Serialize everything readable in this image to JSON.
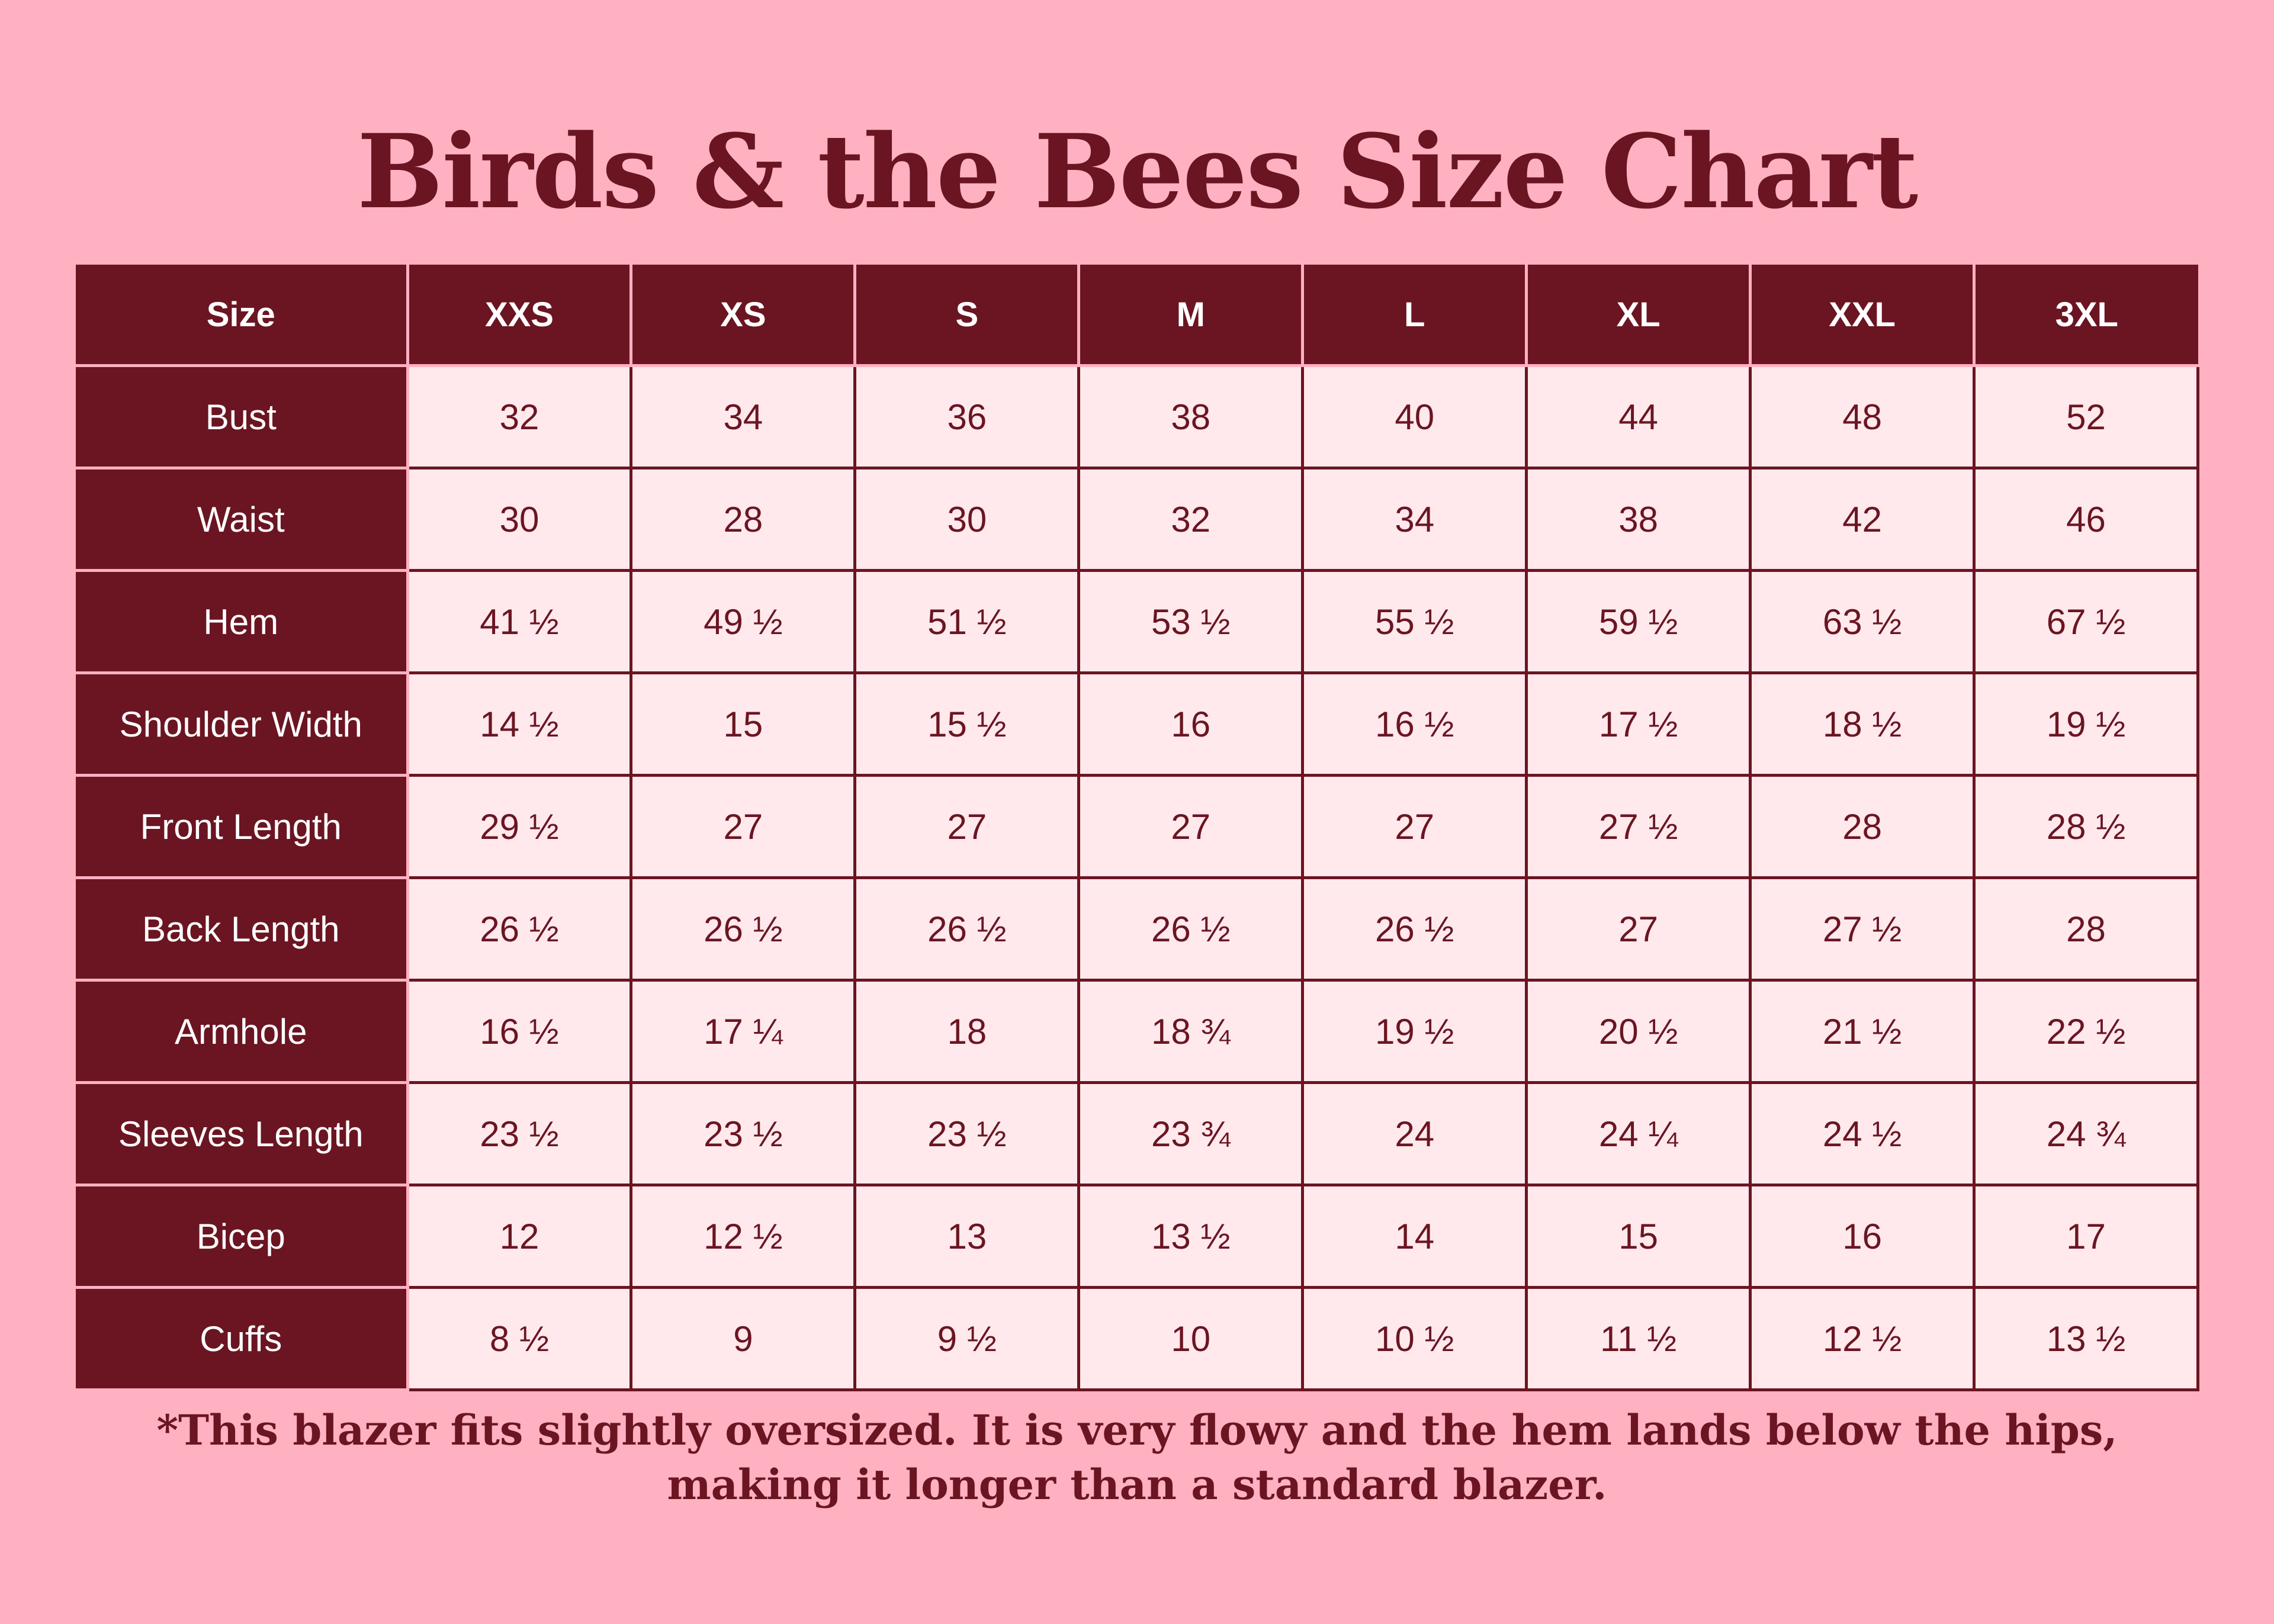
{
  "title": "Birds & the Bees Size Chart",
  "table": {
    "header": {
      "label": "Size",
      "sizes": [
        "XXS",
        "XS",
        "S",
        "M",
        "L",
        "XL",
        "XXL",
        "3XL"
      ]
    },
    "rows": [
      {
        "label": "Bust",
        "values": [
          "32",
          "34",
          "36",
          "38",
          "40",
          "44",
          "48",
          "52"
        ]
      },
      {
        "label": "Waist",
        "values": [
          "30",
          "28",
          "30",
          "32",
          "34",
          "38",
          "42",
          "46"
        ]
      },
      {
        "label": "Hem",
        "values": [
          "41 ½",
          "49 ½",
          "51 ½",
          "53 ½",
          "55 ½",
          "59 ½",
          "63 ½",
          "67 ½"
        ]
      },
      {
        "label": "Shoulder Width",
        "values": [
          "14 ½",
          "15",
          "15 ½",
          "16",
          "16 ½",
          "17 ½",
          "18 ½",
          "19 ½"
        ]
      },
      {
        "label": "Front Length",
        "values": [
          "29 ½",
          "27",
          "27",
          "27",
          "27",
          "27 ½",
          "28",
          "28 ½"
        ]
      },
      {
        "label": "Back Length",
        "values": [
          "26 ½",
          "26 ½",
          "26 ½",
          "26 ½",
          "26 ½",
          "27",
          "27 ½",
          "28"
        ]
      },
      {
        "label": "Armhole",
        "values": [
          "16 ½",
          "17 ¼",
          "18",
          "18 ¾",
          "19 ½",
          "20 ½",
          "21 ½",
          "22 ½"
        ]
      },
      {
        "label": "Sleeves Length",
        "values": [
          "23 ½",
          "23 ½",
          "23 ½",
          "23 ¾",
          "24",
          "24 ¼",
          "24 ½",
          "24 ¾"
        ]
      },
      {
        "label": "Bicep",
        "values": [
          "12",
          "12 ½",
          "13",
          "13 ½",
          "14",
          "15",
          "16",
          "17"
        ]
      },
      {
        "label": "Cuffs",
        "values": [
          "8 ½",
          "9",
          "9 ½",
          "10",
          "10 ½",
          "11 ½",
          "12 ½",
          "13 ½"
        ]
      }
    ]
  },
  "footnote": {
    "line1": "*This blazer fits slightly oversized. It is very flowy and the hem lands below the hips,",
    "line2": "making it longer than a standard blazer."
  },
  "colors": {
    "background": "#ffb1c1",
    "primary": "#6b1522",
    "cell": "#ffe9ec"
  }
}
